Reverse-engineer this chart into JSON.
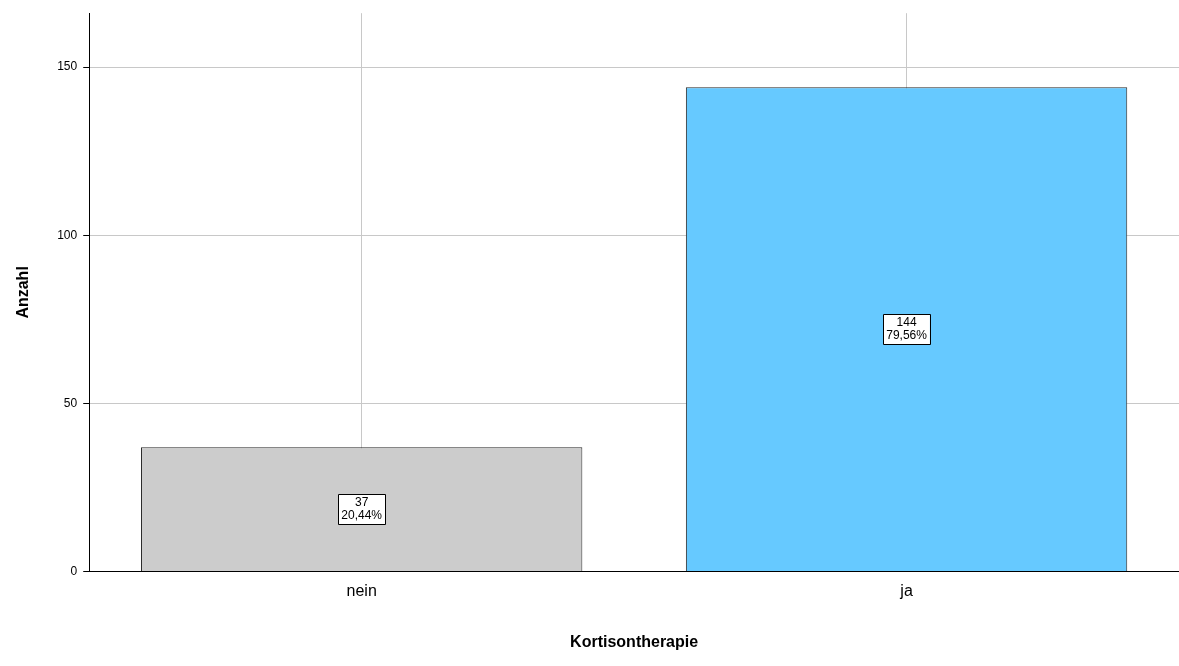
{
  "chart_data": {
    "type": "bar",
    "xlabel": "Kortisontherapie",
    "ylabel": "Anzahl",
    "categories": [
      "nein",
      "ja"
    ],
    "values": [
      37,
      144
    ],
    "colors": [
      "#cccccc",
      "#66c9ff"
    ],
    "value_labels": [
      "37\n20,44%",
      "144\n79,56%"
    ],
    "ylim": [
      0,
      166
    ],
    "yticks": [
      0,
      50,
      100,
      150
    ],
    "grid": true,
    "legend": false
  }
}
